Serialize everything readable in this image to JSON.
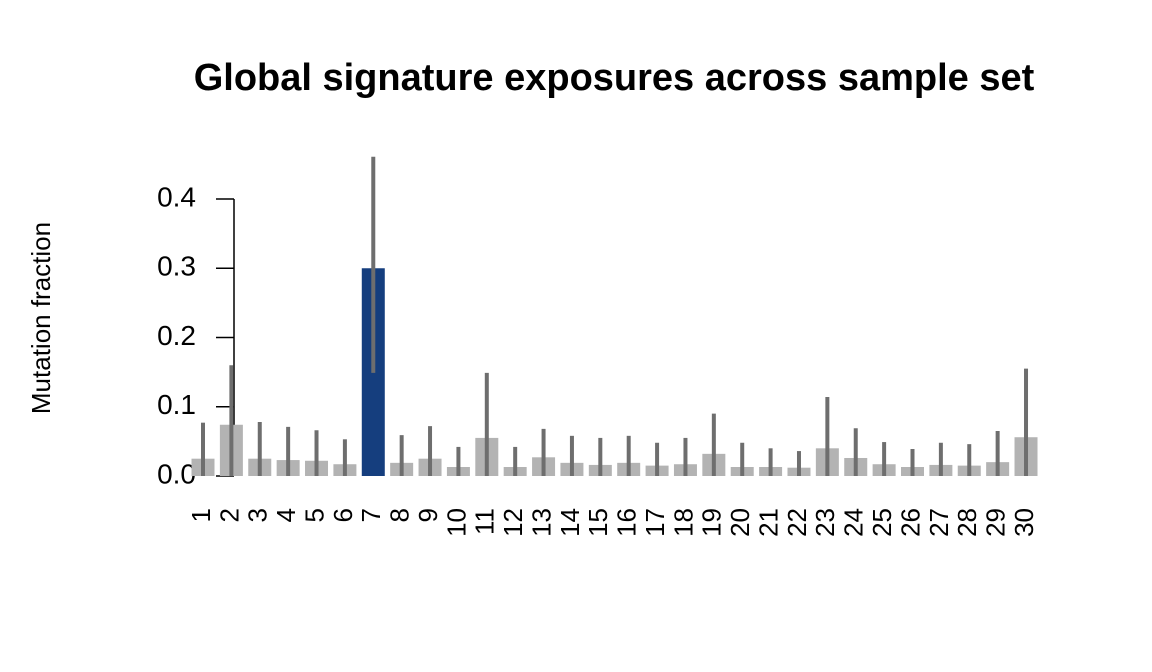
{
  "chart_data": {
    "type": "bar",
    "title": "Global signature exposures across sample set",
    "y_label": "Mutation fraction",
    "categories": [
      "1",
      "2",
      "3",
      "4",
      "5",
      "6",
      "7",
      "8",
      "9",
      "10",
      "11",
      "12",
      "13",
      "14",
      "15",
      "16",
      "17",
      "18",
      "19",
      "20",
      "21",
      "22",
      "23",
      "24",
      "25",
      "26",
      "27",
      "28",
      "29",
      "30"
    ],
    "values": [
      0.025,
      0.074,
      0.025,
      0.023,
      0.022,
      0.017,
      0.3,
      0.019,
      0.025,
      0.013,
      0.055,
      0.013,
      0.027,
      0.019,
      0.016,
      0.019,
      0.015,
      0.017,
      0.032,
      0.013,
      0.013,
      0.012,
      0.04,
      0.026,
      0.017,
      0.013,
      0.016,
      0.015,
      0.02,
      0.056
    ],
    "lower": [
      0,
      0,
      0,
      0,
      0,
      0,
      0.149,
      0,
      0,
      0,
      0,
      0,
      0,
      0,
      0,
      0,
      0,
      0,
      0,
      0,
      0,
      0,
      0,
      0,
      0,
      0,
      0,
      0,
      0,
      0
    ],
    "upper": [
      0.077,
      0.16,
      0.078,
      0.071,
      0.066,
      0.053,
      0.461,
      0.059,
      0.072,
      0.042,
      0.149,
      0.042,
      0.068,
      0.058,
      0.055,
      0.058,
      0.048,
      0.055,
      0.09,
      0.048,
      0.04,
      0.036,
      0.114,
      0.069,
      0.049,
      0.039,
      0.048,
      0.046,
      0.065,
      0.155
    ],
    "colors": [
      "#b3b3b3",
      "#b3b3b3",
      "#b3b3b3",
      "#b3b3b3",
      "#b3b3b3",
      "#b3b3b3",
      "#153e7e",
      "#b3b3b3",
      "#b3b3b3",
      "#b3b3b3",
      "#b3b3b3",
      "#b3b3b3",
      "#b3b3b3",
      "#b3b3b3",
      "#b3b3b3",
      "#b3b3b3",
      "#b3b3b3",
      "#b3b3b3",
      "#b3b3b3",
      "#b3b3b3",
      "#b3b3b3",
      "#b3b3b3",
      "#b3b3b3",
      "#b3b3b3",
      "#b3b3b3",
      "#b3b3b3",
      "#b3b3b3",
      "#b3b3b3",
      "#b3b3b3",
      "#b3b3b3"
    ],
    "error_color": "#6e6e6e",
    "ylim": [
      0,
      0.4
    ],
    "yticks": [
      {
        "value": 0,
        "label": "0.0"
      },
      0.1,
      0.2,
      0.3,
      0.4
    ]
  }
}
